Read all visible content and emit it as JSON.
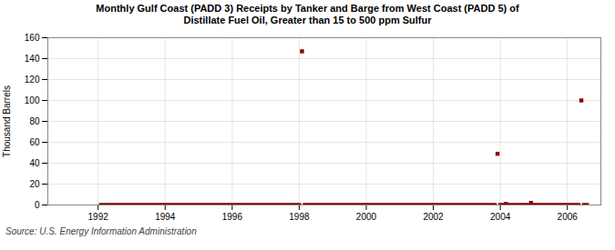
{
  "chart_data": {
    "type": "scatter",
    "title": "Monthly Gulf Coast (PADD 3) Receipts by Tanker and Barge from West Coast (PADD 5) of\nDistillate Fuel Oil, Greater than 15 to 500 ppm Sulfur",
    "ylabel": "Thousand Barrels",
    "source": "Source: U.S. Energy Information Administration",
    "color": "#8B0000",
    "marker": "square",
    "grid": true,
    "xlim": [
      1990.5,
      2007.0
    ],
    "xticks": [
      1992,
      1994,
      1996,
      1998,
      2000,
      2002,
      2004,
      2006
    ],
    "ylim": [
      0,
      160
    ],
    "yticks": [
      0,
      20,
      40,
      60,
      80,
      100,
      120,
      140,
      160
    ],
    "x": [
      1992.083,
      1992.167,
      1992.25,
      1992.333,
      1992.417,
      1992.5,
      1992.583,
      1992.667,
      1992.75,
      1992.833,
      1992.917,
      1993.0,
      1993.083,
      1993.167,
      1993.25,
      1993.333,
      1993.417,
      1993.5,
      1993.583,
      1993.667,
      1993.75,
      1993.833,
      1993.917,
      1994.0,
      1994.083,
      1994.167,
      1994.25,
      1994.333,
      1994.417,
      1994.5,
      1994.583,
      1994.667,
      1994.75,
      1994.833,
      1994.917,
      1995.0,
      1995.083,
      1995.167,
      1995.25,
      1995.333,
      1995.417,
      1995.5,
      1995.583,
      1995.667,
      1995.75,
      1995.833,
      1995.917,
      1996.0,
      1996.083,
      1996.167,
      1996.25,
      1996.333,
      1996.417,
      1996.5,
      1996.583,
      1996.667,
      1996.75,
      1996.833,
      1996.917,
      1997.0,
      1997.083,
      1997.167,
      1997.25,
      1997.333,
      1997.417,
      1997.5,
      1997.583,
      1997.667,
      1997.75,
      1997.833,
      1997.917,
      1998.0,
      1998.083,
      1998.167,
      1998.25,
      1998.333,
      1998.417,
      1998.5,
      1998.583,
      1998.667,
      1998.75,
      1998.833,
      1998.917,
      1999.0,
      1999.083,
      1999.167,
      1999.25,
      1999.333,
      1999.417,
      1999.5,
      1999.583,
      1999.667,
      1999.75,
      1999.833,
      1999.917,
      2000.0,
      2000.083,
      2000.167,
      2000.25,
      2000.333,
      2000.417,
      2000.5,
      2000.583,
      2000.667,
      2000.75,
      2000.833,
      2000.917,
      2001.0,
      2001.083,
      2001.167,
      2001.25,
      2001.333,
      2001.417,
      2001.5,
      2001.583,
      2001.667,
      2001.75,
      2001.833,
      2001.917,
      2002.0,
      2002.083,
      2002.167,
      2002.25,
      2002.333,
      2002.417,
      2002.5,
      2002.583,
      2002.667,
      2002.75,
      2002.833,
      2002.917,
      2003.0,
      2003.083,
      2003.167,
      2003.25,
      2003.333,
      2003.417,
      2003.5,
      2003.583,
      2003.667,
      2003.75,
      2003.833,
      2003.917,
      2004.0,
      2004.083,
      2004.167,
      2004.25,
      2004.333,
      2004.417,
      2004.5,
      2004.583,
      2004.667,
      2004.75,
      2004.833,
      2004.917,
      2005.0,
      2005.083,
      2005.167,
      2005.25,
      2005.333,
      2005.417,
      2005.5,
      2005.583,
      2005.667,
      2005.75,
      2005.833,
      2005.917,
      2006.0,
      2006.083,
      2006.167,
      2006.25,
      2006.333,
      2006.417,
      2006.5,
      2006.583
    ],
    "values": [
      0,
      0,
      0,
      0,
      0,
      0,
      0,
      0,
      0,
      0,
      0,
      0,
      0,
      0,
      0,
      0,
      0,
      0,
      0,
      0,
      0,
      0,
      0,
      0,
      0,
      0,
      0,
      0,
      0,
      0,
      0,
      0,
      0,
      0,
      0,
      0,
      0,
      0,
      0,
      0,
      0,
      0,
      0,
      0,
      0,
      0,
      0,
      0,
      0,
      0,
      0,
      0,
      0,
      0,
      0,
      0,
      0,
      0,
      0,
      0,
      0,
      0,
      0,
      0,
      0,
      0,
      0,
      0,
      0,
      0,
      0,
      0,
      147,
      0,
      0,
      0,
      0,
      0,
      0,
      0,
      0,
      0,
      0,
      0,
      0,
      0,
      0,
      0,
      0,
      0,
      0,
      0,
      0,
      0,
      0,
      0,
      0,
      0,
      0,
      0,
      0,
      0,
      0,
      0,
      0,
      0,
      0,
      0,
      0,
      0,
      0,
      0,
      0,
      0,
      0,
      0,
      0,
      0,
      0,
      0,
      0,
      0,
      0,
      0,
      0,
      0,
      0,
      0,
      0,
      0,
      0,
      0,
      0,
      0,
      0,
      0,
      0,
      0,
      0,
      0,
      0,
      0,
      49,
      0,
      0,
      1,
      0,
      0,
      0,
      0,
      0,
      0,
      0,
      0,
      2,
      0,
      0,
      0,
      0,
      0,
      0,
      0,
      0,
      0,
      0,
      0,
      0,
      0,
      0,
      0,
      0,
      0,
      100,
      0,
      0
    ]
  }
}
